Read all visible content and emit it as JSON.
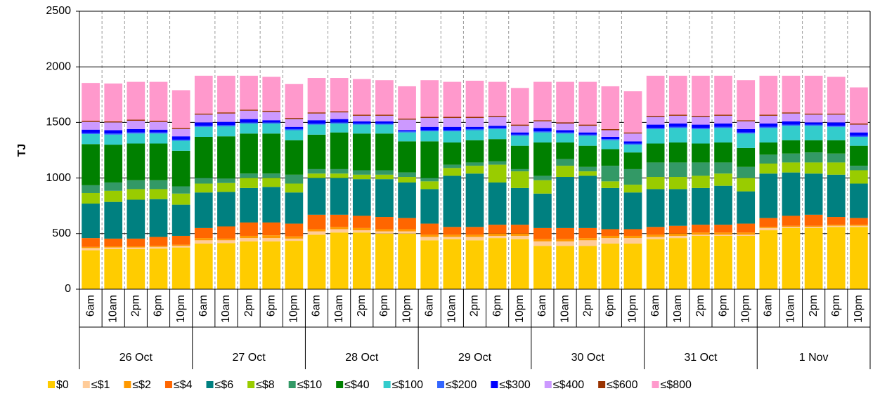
{
  "chart_data": {
    "type": "stacked_bar",
    "y_label": "TJ",
    "ylim": [
      0,
      2500
    ],
    "yticks": [
      0,
      500,
      1000,
      1500,
      2000,
      2500
    ],
    "grid": true,
    "categories": [
      "6am",
      "10am",
      "2pm",
      "6pm",
      "10pm",
      "6am",
      "10am",
      "2pm",
      "6pm",
      "10pm",
      "6am",
      "10am",
      "2pm",
      "6pm",
      "10pm",
      "6am",
      "10am",
      "2pm",
      "6pm",
      "10pm",
      "6am",
      "10am",
      "2pm",
      "6pm",
      "10pm",
      "6am",
      "10am",
      "2pm",
      "6pm",
      "10pm",
      "6am",
      "10am",
      "2pm",
      "6pm",
      "10pm"
    ],
    "groups": [
      "26 Oct",
      "27 Oct",
      "28 Oct",
      "29 Oct",
      "30 Oct",
      "31 Oct",
      "1 Nov"
    ],
    "series": [
      {
        "name": "$0",
        "color": "#FFCC00",
        "values": [
          350,
          360,
          360,
          365,
          375,
          410,
          415,
          430,
          430,
          435,
          490,
          510,
          510,
          500,
          500,
          440,
          450,
          440,
          460,
          450,
          390,
          390,
          390,
          410,
          410,
          450,
          460,
          480,
          480,
          480,
          530,
          550,
          550,
          560,
          560
        ]
      },
      {
        "name": "≤$1",
        "color": "#FFCC99",
        "values": [
          20,
          15,
          15,
          15,
          15,
          30,
          25,
          30,
          30,
          20,
          30,
          30,
          20,
          20,
          20,
          30,
          20,
          30,
          20,
          30,
          40,
          40,
          50,
          50,
          50,
          20,
          20,
          10,
          10,
          10,
          20,
          10,
          10,
          10,
          10
        ]
      },
      {
        "name": "≤$2",
        "color": "#FF9900",
        "values": [
          10,
          10,
          10,
          10,
          10,
          20,
          15,
          20,
          25,
          20,
          20,
          20,
          20,
          20,
          20,
          20,
          20,
          20,
          20,
          20,
          20,
          20,
          20,
          20,
          20,
          20,
          20,
          20,
          20,
          20,
          10,
          10,
          10,
          10,
          10
        ]
      },
      {
        "name": "≤$4",
        "color": "#FF6600",
        "values": [
          80,
          70,
          70,
          80,
          80,
          90,
          110,
          120,
          115,
          115,
          130,
          110,
          110,
          110,
          100,
          100,
          70,
          70,
          80,
          80,
          100,
          100,
          90,
          60,
          60,
          70,
          70,
          70,
          70,
          80,
          80,
          90,
          100,
          70,
          60
        ]
      },
      {
        "name": "≤$6",
        "color": "#008080",
        "values": [
          310,
          330,
          350,
          340,
          280,
          320,
          310,
          310,
          320,
          280,
          330,
          330,
          330,
          340,
          320,
          310,
          460,
          480,
          380,
          330,
          310,
          460,
          470,
          370,
          330,
          340,
          330,
          330,
          350,
          290,
          400,
          390,
          370,
          380,
          310
        ]
      },
      {
        "name": "≤$8",
        "color": "#99CC00",
        "values": [
          95,
          100,
          95,
          90,
          100,
          80,
          80,
          90,
          80,
          80,
          40,
          40,
          40,
          40,
          50,
          70,
          70,
          70,
          160,
          150,
          120,
          100,
          40,
          60,
          70,
          110,
          110,
          110,
          110,
          120,
          90,
          90,
          100,
          110,
          120
        ]
      },
      {
        "name": "≤$10",
        "color": "#339966",
        "values": [
          70,
          75,
          80,
          80,
          65,
          50,
          40,
          40,
          40,
          80,
          40,
          40,
          40,
          40,
          40,
          30,
          30,
          30,
          30,
          20,
          40,
          60,
          40,
          140,
          140,
          130,
          130,
          120,
          100,
          100,
          80,
          80,
          90,
          80,
          40
        ]
      },
      {
        "name": "≤$40",
        "color": "#008000",
        "values": [
          370,
          340,
          330,
          330,
          320,
          370,
          380,
          360,
          360,
          310,
          310,
          330,
          330,
          330,
          280,
          330,
          200,
          200,
          200,
          210,
          300,
          150,
          190,
          150,
          150,
          170,
          180,
          170,
          180,
          170,
          110,
          120,
          110,
          120,
          180
        ]
      },
      {
        "name": "≤$100",
        "color": "#33CCCC",
        "values": [
          90,
          90,
          90,
          90,
          90,
          90,
          90,
          90,
          90,
          90,
          90,
          80,
          80,
          80,
          80,
          90,
          100,
          90,
          90,
          90,
          90,
          80,
          90,
          80,
          70,
          130,
          130,
          130,
          130,
          130,
          130,
          130,
          130,
          120,
          80
        ]
      },
      {
        "name": "≤$200",
        "color": "#3366FF",
        "values": [
          10,
          10,
          10,
          10,
          10,
          10,
          10,
          10,
          10,
          10,
          10,
          10,
          10,
          10,
          10,
          10,
          10,
          10,
          10,
          10,
          10,
          10,
          10,
          10,
          10,
          10,
          10,
          10,
          10,
          10,
          10,
          10,
          10,
          10,
          10
        ]
      },
      {
        "name": "≤$300",
        "color": "#0000FF",
        "values": [
          30,
          30,
          30,
          25,
          30,
          30,
          30,
          30,
          20,
          20,
          30,
          30,
          20,
          20,
          10,
          30,
          30,
          20,
          20,
          20,
          30,
          20,
          20,
          20,
          20,
          30,
          30,
          30,
          30,
          30,
          30,
          30,
          20,
          30,
          30
        ]
      },
      {
        "name": "≤$400",
        "color": "#CC99FF",
        "values": [
          70,
          70,
          75,
          70,
          65,
          70,
          75,
          75,
          75,
          70,
          60,
          60,
          50,
          50,
          95,
          80,
          80,
          80,
          80,
          60,
          60,
          60,
          60,
          60,
          70,
          70,
          70,
          70,
          70,
          70,
          70,
          70,
          70,
          70,
          70
        ]
      },
      {
        "name": "≤$600",
        "color": "#993300",
        "values": [
          10,
          10,
          10,
          10,
          10,
          10,
          10,
          10,
          10,
          10,
          10,
          10,
          10,
          10,
          10,
          10,
          10,
          10,
          10,
          10,
          10,
          10,
          10,
          10,
          10,
          10,
          10,
          10,
          10,
          10,
          10,
          10,
          10,
          10,
          10
        ]
      },
      {
        "name": "≤$800",
        "color": "#FF99CC",
        "values": [
          340,
          340,
          340,
          350,
          340,
          340,
          330,
          305,
          305,
          305,
          310,
          300,
          320,
          310,
          290,
          330,
          315,
          325,
          305,
          330,
          345,
          365,
          385,
          385,
          370,
          360,
          350,
          360,
          350,
          360,
          350,
          330,
          340,
          330,
          325
        ]
      }
    ]
  }
}
